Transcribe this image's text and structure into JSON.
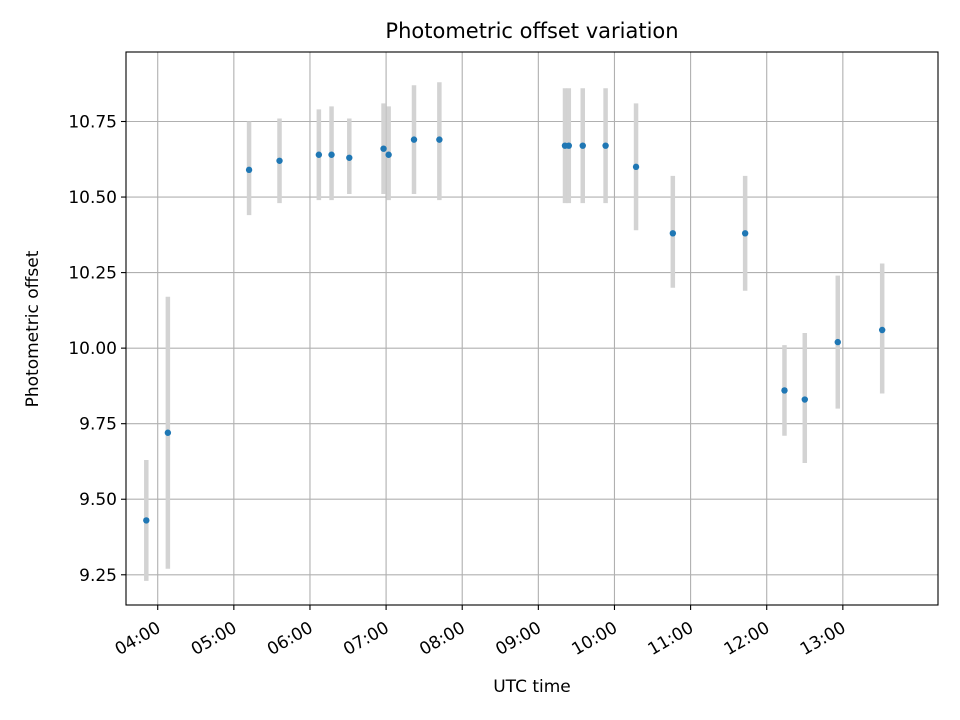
{
  "chart_data": {
    "type": "scatter",
    "title": "Photometric offset variation",
    "xlabel": "UTC time",
    "ylabel": "Photometric offset",
    "x_unit": "UTC time (HH:MM)",
    "xlim": [
      "03:35",
      "14:15"
    ],
    "ylim": [
      9.15,
      10.98
    ],
    "x_ticks": [
      "04:00",
      "05:00",
      "06:00",
      "07:00",
      "08:00",
      "09:00",
      "10:00",
      "11:00",
      "12:00",
      "13:00"
    ],
    "y_ticks": [
      "9.25",
      "9.50",
      "9.75",
      "10.00",
      "10.25",
      "10.50",
      "10.75"
    ],
    "grid": true,
    "colors": {
      "points": "#1f77b4",
      "errorbars": "#d3d3d3",
      "grid": "#b0b0b0"
    },
    "series": [
      {
        "points": [
          {
            "x": "03:51",
            "y": 9.43,
            "ylow": 9.23,
            "yhigh": 9.63
          },
          {
            "x": "04:08",
            "y": 9.72,
            "ylow": 9.27,
            "yhigh": 10.17
          },
          {
            "x": "05:12",
            "y": 10.59,
            "ylow": 10.44,
            "yhigh": 10.75
          },
          {
            "x": "05:36",
            "y": 10.62,
            "ylow": 10.48,
            "yhigh": 10.76
          },
          {
            "x": "06:07",
            "y": 10.64,
            "ylow": 10.49,
            "yhigh": 10.79
          },
          {
            "x": "06:17",
            "y": 10.64,
            "ylow": 10.49,
            "yhigh": 10.8
          },
          {
            "x": "06:31",
            "y": 10.63,
            "ylow": 10.51,
            "yhigh": 10.76
          },
          {
            "x": "06:58",
            "y": 10.66,
            "ylow": 10.51,
            "yhigh": 10.81
          },
          {
            "x": "07:02",
            "y": 10.64,
            "ylow": 10.49,
            "yhigh": 10.8
          },
          {
            "x": "07:22",
            "y": 10.69,
            "ylow": 10.51,
            "yhigh": 10.87
          },
          {
            "x": "07:42",
            "y": 10.69,
            "ylow": 10.49,
            "yhigh": 10.88
          },
          {
            "x": "09:21",
            "y": 10.67,
            "ylow": 10.48,
            "yhigh": 10.86
          },
          {
            "x": "09:24",
            "y": 10.67,
            "ylow": 10.48,
            "yhigh": 10.86
          },
          {
            "x": "09:35",
            "y": 10.67,
            "ylow": 10.48,
            "yhigh": 10.86
          },
          {
            "x": "09:53",
            "y": 10.67,
            "ylow": 10.48,
            "yhigh": 10.86
          },
          {
            "x": "10:17",
            "y": 10.6,
            "ylow": 10.39,
            "yhigh": 10.81
          },
          {
            "x": "10:46",
            "y": 10.38,
            "ylow": 10.2,
            "yhigh": 10.57
          },
          {
            "x": "11:43",
            "y": 10.38,
            "ylow": 10.19,
            "yhigh": 10.57
          },
          {
            "x": "12:14",
            "y": 9.86,
            "ylow": 9.71,
            "yhigh": 10.01
          },
          {
            "x": "12:30",
            "y": 9.83,
            "ylow": 9.62,
            "yhigh": 10.05
          },
          {
            "x": "12:56",
            "y": 10.02,
            "ylow": 9.8,
            "yhigh": 10.24
          },
          {
            "x": "13:31",
            "y": 10.06,
            "ylow": 9.85,
            "yhigh": 10.28
          }
        ]
      }
    ]
  }
}
